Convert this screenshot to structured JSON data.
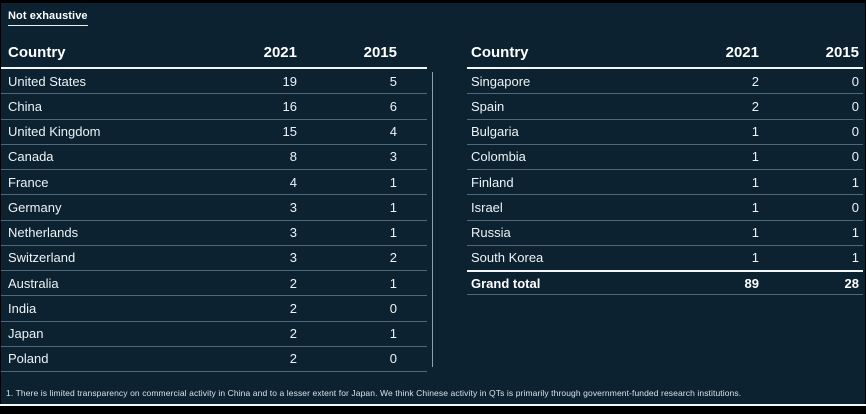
{
  "annotation": "Not exhaustive",
  "footnote": "1. There is limited transparency on commercial activity in China and to a lesser extent for Japan. We think Chinese activity in QTs is primarily through government-funded research institutions.",
  "colors": {
    "background": "#0c2231",
    "text": "#ffffff",
    "row_line": "#50687a",
    "divider_line": "#8fa0ac",
    "header_rule": "#f2f6f8"
  },
  "chart_data": {
    "type": "table",
    "title": "",
    "annotation": "Not exhaustive",
    "columns": [
      "Country",
      "2021",
      "2015"
    ],
    "tables": [
      {
        "name": "left",
        "rows": [
          {
            "country": "United States",
            "y2021": "19",
            "y2015": "5"
          },
          {
            "country": "China",
            "y2021": "16",
            "y2015": "6"
          },
          {
            "country": "United Kingdom",
            "y2021": "15",
            "y2015": "4"
          },
          {
            "country": "Canada",
            "y2021": "8",
            "y2015": "3"
          },
          {
            "country": "France",
            "y2021": "4",
            "y2015": "1"
          },
          {
            "country": "Germany",
            "y2021": "3",
            "y2015": "1"
          },
          {
            "country": "Netherlands",
            "y2021": "3",
            "y2015": "1"
          },
          {
            "country": "Switzerland",
            "y2021": "3",
            "y2015": "2"
          },
          {
            "country": "Australia",
            "y2021": "2",
            "y2015": "1"
          },
          {
            "country": "India",
            "y2021": "2",
            "y2015": "0"
          },
          {
            "country": "Japan",
            "y2021": "2",
            "y2015": "1"
          },
          {
            "country": "Poland",
            "y2021": "2",
            "y2015": "0"
          }
        ]
      },
      {
        "name": "right",
        "rows": [
          {
            "country": "Singapore",
            "y2021": "2",
            "y2015": "0"
          },
          {
            "country": "Spain",
            "y2021": "2",
            "y2015": "0"
          },
          {
            "country": "Bulgaria",
            "y2021": "1",
            "y2015": "0"
          },
          {
            "country": "Colombia",
            "y2021": "1",
            "y2015": "0"
          },
          {
            "country": "Finland",
            "y2021": "1",
            "y2015": "1"
          },
          {
            "country": "Israel",
            "y2021": "1",
            "y2015": "0"
          },
          {
            "country": "Russia",
            "y2021": "1",
            "y2015": "1"
          },
          {
            "country": "South Korea",
            "y2021": "1",
            "y2015": "1"
          }
        ],
        "total_row": {
          "country": "Grand total",
          "y2021": "89",
          "y2015": "28"
        }
      }
    ],
    "footnote": "1. There is limited transparency on commercial activity in China and to a lesser extent for Japan. We think Chinese activity in QTs is primarily through government-funded research institutions."
  }
}
